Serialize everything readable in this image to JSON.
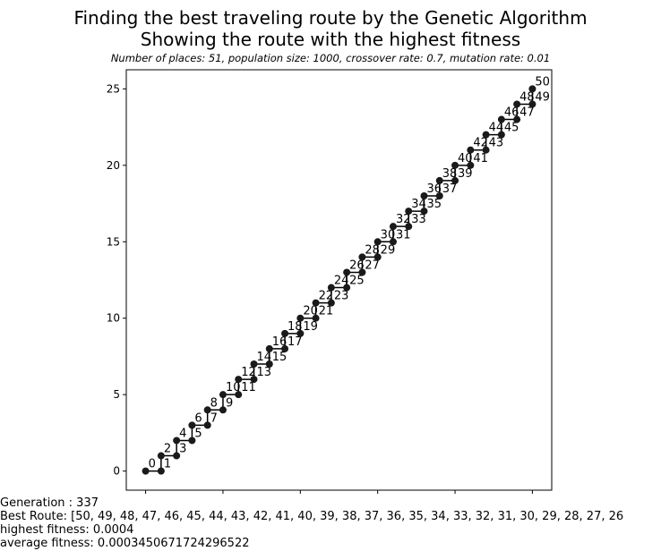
{
  "header": {
    "title_line1": "Finding the best traveling route by the Genetic Algorithm",
    "title_line2": "Showing the route with the highest fitness",
    "subtitle": "Number of places: 51, population size: 1000, crossover rate: 0.7, mutation rate: 0.01"
  },
  "info": {
    "generation": "Generation : 337",
    "best_route": "Best Route: [50, 49, 48, 47, 46, 45, 44, 43, 42, 41, 40, 39, 38, 37, 36, 35, 34, 33, 32, 31, 30, 29, 28, 27, 26",
    "highest_fitness": "highest fitness: 0.0004",
    "average_fitness": "average fitness: 0.0003450671724296522"
  },
  "chart_data": {
    "type": "line",
    "xlim": [
      -1.25,
      26.25
    ],
    "ylim": [
      -1.25,
      26.25
    ],
    "xticks": [
      0,
      5,
      10,
      15,
      20,
      25
    ],
    "yticks": [
      0,
      5,
      10,
      15,
      20,
      25
    ],
    "grid": false,
    "marker_color": "#1a1a1a",
    "line_color": "#000000",
    "points": [
      {
        "label": "0",
        "x": 0,
        "y": 0
      },
      {
        "label": "1",
        "x": 1,
        "y": 0
      },
      {
        "label": "2",
        "x": 1,
        "y": 1
      },
      {
        "label": "3",
        "x": 2,
        "y": 1
      },
      {
        "label": "4",
        "x": 2,
        "y": 2
      },
      {
        "label": "5",
        "x": 3,
        "y": 2
      },
      {
        "label": "6",
        "x": 3,
        "y": 3
      },
      {
        "label": "7",
        "x": 4,
        "y": 3
      },
      {
        "label": "8",
        "x": 4,
        "y": 4
      },
      {
        "label": "9",
        "x": 5,
        "y": 4
      },
      {
        "label": "10",
        "x": 5,
        "y": 5
      },
      {
        "label": "11",
        "x": 6,
        "y": 5
      },
      {
        "label": "12",
        "x": 6,
        "y": 6
      },
      {
        "label": "13",
        "x": 7,
        "y": 6
      },
      {
        "label": "14",
        "x": 7,
        "y": 7
      },
      {
        "label": "15",
        "x": 8,
        "y": 7
      },
      {
        "label": "16",
        "x": 8,
        "y": 8
      },
      {
        "label": "17",
        "x": 9,
        "y": 8
      },
      {
        "label": "18",
        "x": 9,
        "y": 9
      },
      {
        "label": "19",
        "x": 10,
        "y": 9
      },
      {
        "label": "20",
        "x": 10,
        "y": 10
      },
      {
        "label": "21",
        "x": 11,
        "y": 10
      },
      {
        "label": "22",
        "x": 11,
        "y": 11
      },
      {
        "label": "23",
        "x": 12,
        "y": 11
      },
      {
        "label": "24",
        "x": 12,
        "y": 12
      },
      {
        "label": "25",
        "x": 13,
        "y": 12
      },
      {
        "label": "26",
        "x": 13,
        "y": 13
      },
      {
        "label": "27",
        "x": 14,
        "y": 13
      },
      {
        "label": "28",
        "x": 14,
        "y": 14
      },
      {
        "label": "29",
        "x": 15,
        "y": 14
      },
      {
        "label": "30",
        "x": 15,
        "y": 15
      },
      {
        "label": "31",
        "x": 16,
        "y": 15
      },
      {
        "label": "32",
        "x": 16,
        "y": 16
      },
      {
        "label": "33",
        "x": 17,
        "y": 16
      },
      {
        "label": "34",
        "x": 17,
        "y": 17
      },
      {
        "label": "35",
        "x": 18,
        "y": 17
      },
      {
        "label": "36",
        "x": 18,
        "y": 18
      },
      {
        "label": "37",
        "x": 19,
        "y": 18
      },
      {
        "label": "38",
        "x": 19,
        "y": 19
      },
      {
        "label": "39",
        "x": 20,
        "y": 19
      },
      {
        "label": "40",
        "x": 20,
        "y": 20
      },
      {
        "label": "41",
        "x": 21,
        "y": 20
      },
      {
        "label": "42",
        "x": 21,
        "y": 21
      },
      {
        "label": "43",
        "x": 22,
        "y": 21
      },
      {
        "label": "44",
        "x": 22,
        "y": 22
      },
      {
        "label": "45",
        "x": 23,
        "y": 22
      },
      {
        "label": "46",
        "x": 23,
        "y": 23
      },
      {
        "label": "47",
        "x": 24,
        "y": 23
      },
      {
        "label": "48",
        "x": 24,
        "y": 24
      },
      {
        "label": "49",
        "x": 25,
        "y": 24
      },
      {
        "label": "50",
        "x": 25,
        "y": 25
      }
    ]
  }
}
